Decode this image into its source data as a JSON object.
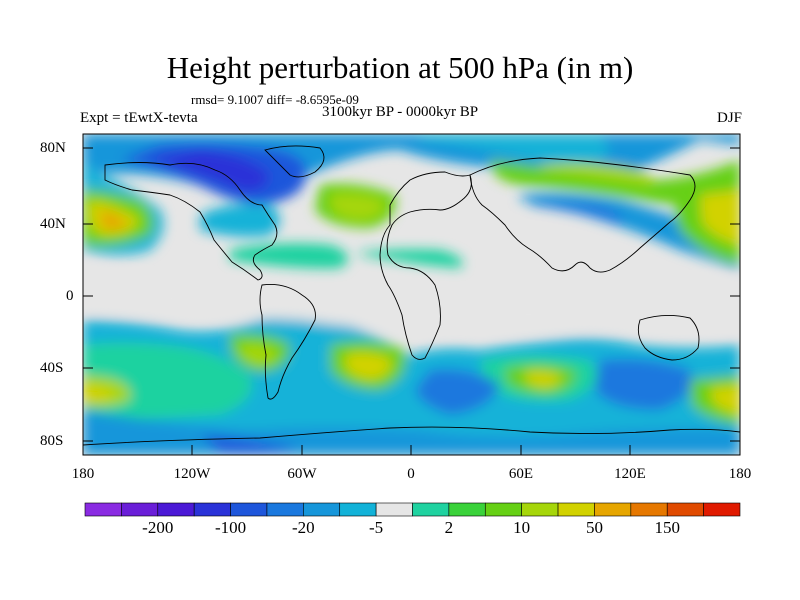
{
  "title": "Height perturbation at 500 hPa (in m)",
  "stats": "rmsd= 9.1007 diff= -8.6595e-09",
  "experiment": "Expt = tEwtX-tevta",
  "period": "3100kyr BP - 0000kyr BP",
  "season": "DJF",
  "lat_labels": [
    "80N",
    "40N",
    "0",
    "40S",
    "80S"
  ],
  "lon_labels": [
    "180",
    "120W",
    "60W",
    "0",
    "60E",
    "120E",
    "180"
  ],
  "colorbar": {
    "labels": [
      "-200",
      "-100",
      "-20",
      "-5",
      "2",
      "10",
      "50",
      "150"
    ],
    "colors": [
      "#8a2be2",
      "#6a1ed8",
      "#4b19d6",
      "#2a32d8",
      "#1e56db",
      "#1a78de",
      "#1696da",
      "#12b2d8",
      "#e6e6e6",
      "#1fd2a0",
      "#3ad23a",
      "#66d014",
      "#a6d60a",
      "#d2d200",
      "#e6a600",
      "#e67800",
      "#e04a00",
      "#e01a00"
    ]
  },
  "colors": {
    "land_outline": "#000000",
    "no_change": "#e6e6e6"
  }
}
